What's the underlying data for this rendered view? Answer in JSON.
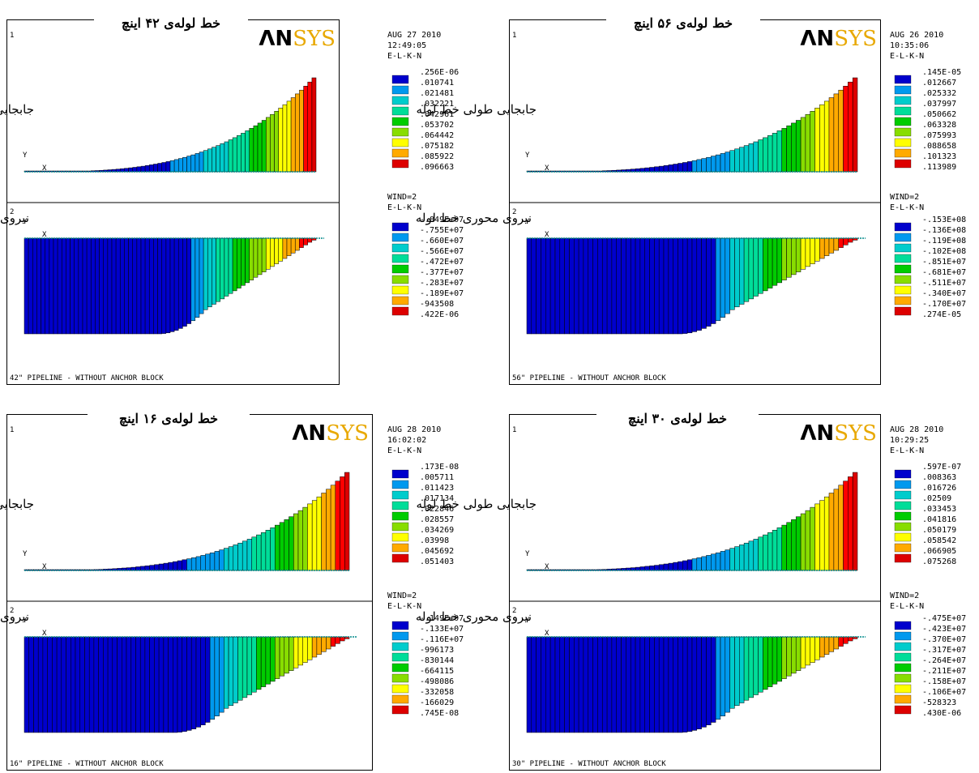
{
  "colors": {
    "scale": [
      "#0000cc",
      "#0099ee",
      "#00cccc",
      "#00dd99",
      "#00cc00",
      "#88dd00",
      "#ffff00",
      "#ffaa00",
      "#ff0000"
    ],
    "red": "#dd0000",
    "logo_black": "#000000",
    "logo_gold": "#e8a800"
  },
  "icons": [
    "ansys-logo"
  ],
  "panels": [
    {
      "id": "p42",
      "title": "خط لوله‌ی ۴۲ اینچ",
      "logo": {
        "part1": "ΛN",
        "part2": "SYS"
      },
      "meta": [
        "AUG 27 2010",
        "12:49:05",
        "E-L-K-N"
      ],
      "window_index_top": "1",
      "window_index_bottom": "2",
      "top_label": "جابجایی طولی خط لوله",
      "bottom_label": "نیروی محوری خط لوله",
      "top_legend": [
        ".256E-06",
        ".010741",
        ".021481",
        ".032221",
        ".042961",
        ".053702",
        ".064442",
        ".075182",
        ".085922",
        ".096663"
      ],
      "wind_header": [
        "WIND=2",
        "E-L-K-N"
      ],
      "bottom_legend": [
        "-.849E+07",
        "-.755E+07",
        "-.660E+07",
        "-.566E+07",
        "-.472E+07",
        "-.377E+07",
        "-.283E+07",
        "-.189E+07",
        "-943508",
        ".422E-06"
      ],
      "caption": "42\" PIPELINE - WITHOUT ANCHOR BLOCK",
      "axis_y": "Y",
      "axis_x": "X"
    },
    {
      "id": "p56",
      "title": "خط لوله‌ی ۵۶ اینچ",
      "logo": {
        "part1": "ΛN",
        "part2": "SYS"
      },
      "meta": [
        "AUG 26 2010",
        "10:35:06",
        "E-L-K-N"
      ],
      "window_index_top": "1",
      "window_index_bottom": "2",
      "top_label": "جابجایی طولی خط لوله",
      "bottom_label": "نیروی محوری خط لوله",
      "top_legend": [
        ".145E-05",
        ".012667",
        ".025332",
        ".037997",
        ".050662",
        ".063328",
        ".075993",
        ".088658",
        ".101323",
        ".113989"
      ],
      "wind_header": [
        "WIND=2",
        "E-L-K-N"
      ],
      "bottom_legend": [
        "-.153E+08",
        "-.136E+08",
        "-.119E+08",
        "-.102E+08",
        "-.851E+07",
        "-.681E+07",
        "-.511E+07",
        "-.340E+07",
        "-.170E+07",
        ".274E-05"
      ],
      "caption": "56\" PIPELINE - WITHOUT ANCHOR BLOCK",
      "axis_y": "Y",
      "axis_x": "X"
    },
    {
      "id": "p16",
      "title": "خط لوله‌ی ۱۶ اینچ",
      "logo": {
        "part1": "ΛN",
        "part2": "SYS"
      },
      "meta": [
        "AUG 28 2010",
        "16:02:02",
        "E-L-K-N"
      ],
      "window_index_top": "1",
      "window_index_bottom": "2",
      "top_label": "جابجایی طولی خط لوله",
      "bottom_label": "نیروی محوری خط لوله",
      "top_legend": [
        ".173E-08",
        ".005711",
        ".011423",
        ".017134",
        ".022846",
        ".028557",
        ".034269",
        ".03998",
        ".045692",
        ".051403"
      ],
      "wind_header": [
        "WIND=2",
        "E-L-K-N"
      ],
      "bottom_legend": [
        "-.149E+07",
        "-.133E+07",
        "-.116E+07",
        "-996173",
        "-830144",
        "-664115",
        "-498086",
        "-332058",
        "-166029",
        ".745E-08"
      ],
      "caption": "16\" PIPELINE - WITHOUT ANCHOR BLOCK",
      "axis_y": "Y",
      "axis_x": "X"
    },
    {
      "id": "p30",
      "title": "خط لوله‌ی ۳۰ اینچ",
      "logo": {
        "part1": "ΛN",
        "part2": "SYS"
      },
      "meta": [
        "AUG 28 2010",
        "10:29:25",
        "E-L-K-N"
      ],
      "window_index_top": "1",
      "window_index_bottom": "2",
      "top_label": "جابجایی طولی خط لوله",
      "bottom_label": "نیروی محوری خط لوله",
      "top_legend": [
        ".597E-07",
        ".008363",
        ".016726",
        ".02509",
        ".033453",
        ".041816",
        ".050179",
        ".058542",
        ".066905",
        ".075268"
      ],
      "wind_header": [
        "WIND=2",
        "E-L-K-N"
      ],
      "bottom_legend": [
        "-.475E+07",
        "-.423E+07",
        "-.370E+07",
        "-.317E+07",
        "-.264E+07",
        "-.211E+07",
        "-.158E+07",
        "-.106E+07",
        "-528323",
        ".430E-06"
      ],
      "caption": "30\" PIPELINE - WITHOUT ANCHOR BLOCK",
      "axis_y": "Y",
      "axis_x": "X"
    }
  ]
}
